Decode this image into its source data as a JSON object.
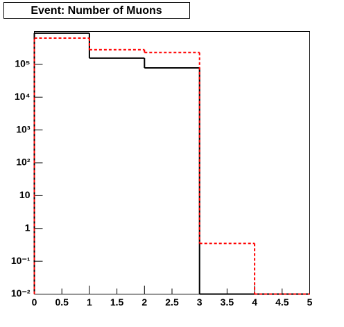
{
  "chart_data": {
    "type": "histogram",
    "title": "Event: Number of Muons",
    "bins": [
      0,
      1,
      2,
      3,
      4,
      5
    ],
    "series": [
      {
        "color": "#000000",
        "dash": false,
        "values": [
          890000,
          155000,
          78000,
          0,
          0
        ]
      },
      {
        "color": "#ff0000",
        "dash": true,
        "values": [
          630000,
          280000,
          230000,
          0.35,
          0
        ]
      }
    ],
    "xlim": [
      0,
      5
    ],
    "xticks": [
      0,
      0.5,
      1,
      1.5,
      2,
      2.5,
      3,
      3.5,
      4,
      4.5,
      5
    ],
    "ylim": [
      0.01,
      1000000
    ],
    "log_y": true,
    "yticks": [
      {
        "value": 0.01,
        "label": "10⁻²"
      },
      {
        "value": 0.1,
        "label": "10⁻¹"
      },
      1,
      10,
      {
        "value": 100,
        "label": "10²"
      },
      {
        "value": 1000,
        "label": "10³"
      },
      {
        "value": 10000,
        "label": "10⁴"
      },
      {
        "value": 100000,
        "label": "10⁵"
      }
    ]
  }
}
